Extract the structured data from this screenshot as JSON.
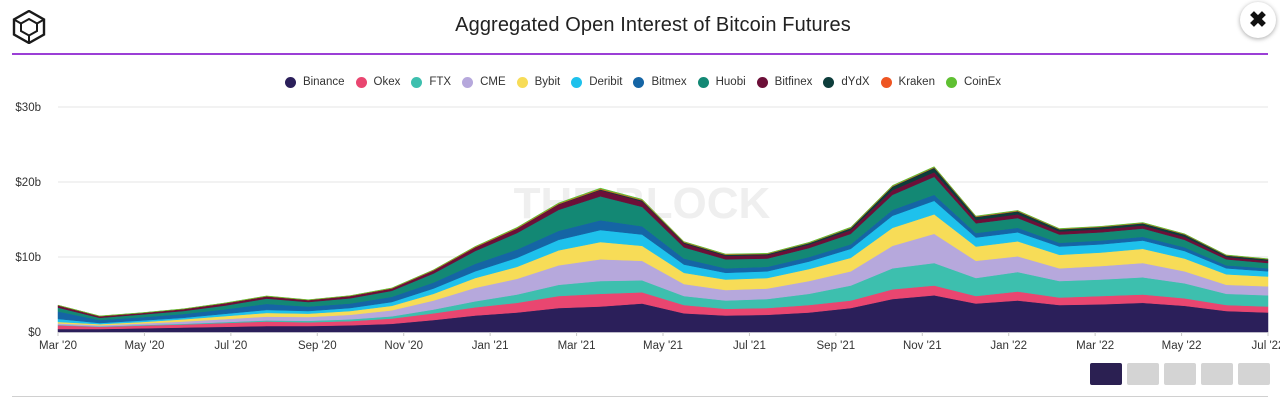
{
  "header": {
    "title": "Aggregated Open Interest of Bitcoin Futures",
    "close_icon": "✖"
  },
  "watermark": "THE BLOCK",
  "colors": {
    "accent_rule": "#9b3fd6",
    "range_active": "#2b2052",
    "range_inactive": "#d4d4d4"
  },
  "range_buttons": [
    {
      "state": "active"
    },
    {
      "state": "inactive"
    },
    {
      "state": "inactive"
    },
    {
      "state": "inactive"
    },
    {
      "state": "inactive"
    }
  ],
  "chart_data": {
    "type": "area",
    "stacked": true,
    "title": "Aggregated Open Interest of Bitcoin Futures",
    "xlabel": "",
    "ylabel": "",
    "grid": true,
    "legend_position": "top",
    "ylim": [
      0,
      30
    ],
    "y_ticks": [
      {
        "value": 0,
        "label": "$0"
      },
      {
        "value": 10,
        "label": "$10b"
      },
      {
        "value": 20,
        "label": "$20b"
      },
      {
        "value": 30,
        "label": "$30b"
      }
    ],
    "x_ticks": [
      "Mar '20",
      "May '20",
      "Jul '20",
      "Sep '20",
      "Nov '20",
      "Jan '21",
      "Mar '21",
      "May '21",
      "Jul '21",
      "Sep '21",
      "Nov '21",
      "Jan '22",
      "Mar '22",
      "May '22",
      "Jul '22"
    ],
    "x": [
      "Mar '20",
      "Apr '20",
      "May '20",
      "Jun '20",
      "Jul '20",
      "Aug '20",
      "Sep '20",
      "Oct '20",
      "Nov '20",
      "Dec '20",
      "Jan '21",
      "Feb '21",
      "Mar '21",
      "Apr '21",
      "Mid Apr '21",
      "May '21",
      "Jun '21",
      "Jul '21",
      "Aug '21",
      "Sep '21",
      "Oct '21",
      "Nov '21",
      "Dec '21",
      "Jan '22",
      "Feb '22",
      "Mar '22",
      "Apr '22",
      "May '22",
      "Jun '22",
      "Jul '22"
    ],
    "series": [
      {
        "name": "Binance",
        "color": "#2b1f5a",
        "values": [
          0.4,
          0.4,
          0.5,
          0.6,
          0.7,
          0.8,
          0.8,
          0.9,
          1.1,
          1.6,
          2.2,
          2.6,
          3.2,
          3.4,
          3.8,
          2.5,
          2.2,
          2.3,
          2.6,
          3.2,
          4.4,
          4.9,
          3.8,
          4.2,
          3.6,
          3.7,
          3.9,
          3.5,
          2.8,
          2.6
        ]
      },
      {
        "name": "Okex",
        "color": "#e94670",
        "values": [
          0.5,
          0.3,
          0.35,
          0.4,
          0.5,
          0.6,
          0.5,
          0.55,
          0.7,
          0.9,
          1.1,
          1.3,
          1.6,
          1.7,
          1.5,
          1.1,
          0.9,
          0.9,
          1.0,
          1.0,
          1.3,
          1.3,
          1.0,
          1.2,
          1.0,
          1.1,
          1.1,
          1.0,
          0.8,
          0.8
        ]
      },
      {
        "name": "FTX",
        "color": "#3dbfae",
        "values": [
          0.05,
          0.05,
          0.08,
          0.1,
          0.12,
          0.15,
          0.2,
          0.25,
          0.3,
          0.5,
          0.8,
          1.1,
          1.5,
          1.7,
          1.6,
          1.2,
          1.1,
          1.2,
          1.5,
          2.0,
          2.8,
          3.0,
          2.4,
          2.6,
          2.2,
          2.2,
          2.3,
          2.0,
          1.5,
          1.5
        ]
      },
      {
        "name": "CME",
        "color": "#b6a8dc",
        "values": [
          0.2,
          0.15,
          0.2,
          0.3,
          0.4,
          0.5,
          0.5,
          0.6,
          0.8,
          1.2,
          1.8,
          2.1,
          2.6,
          2.9,
          2.6,
          1.6,
          1.4,
          1.4,
          1.7,
          1.9,
          3.0,
          3.9,
          2.3,
          2.1,
          1.7,
          1.8,
          1.9,
          1.6,
          1.2,
          1.2
        ]
      },
      {
        "name": "Bybit",
        "color": "#f7dc57",
        "values": [
          0.2,
          0.15,
          0.2,
          0.3,
          0.4,
          0.5,
          0.45,
          0.5,
          0.6,
          0.9,
          1.3,
          1.6,
          2.0,
          2.3,
          2.0,
          1.5,
          1.4,
          1.4,
          1.6,
          1.8,
          2.4,
          2.6,
          1.9,
          2.0,
          1.8,
          1.8,
          1.9,
          1.7,
          1.4,
          1.3
        ]
      },
      {
        "name": "Deribit",
        "color": "#1ec1ec",
        "values": [
          0.4,
          0.15,
          0.2,
          0.2,
          0.3,
          0.4,
          0.35,
          0.4,
          0.5,
          0.7,
          0.9,
          1.2,
          1.4,
          1.6,
          1.5,
          1.1,
          0.9,
          0.9,
          1.0,
          1.2,
          1.6,
          1.8,
          1.2,
          1.2,
          1.1,
          1.1,
          1.1,
          1.0,
          0.8,
          0.7
        ]
      },
      {
        "name": "Bitmex",
        "color": "#1565a5",
        "values": [
          1.0,
          0.4,
          0.45,
          0.5,
          0.6,
          0.8,
          0.6,
          0.6,
          0.7,
          0.8,
          1.0,
          1.1,
          1.2,
          1.3,
          1.1,
          0.8,
          0.6,
          0.6,
          0.6,
          0.6,
          0.8,
          0.8,
          0.6,
          0.6,
          0.5,
          0.5,
          0.5,
          0.5,
          0.4,
          0.4
        ]
      },
      {
        "name": "Huobi",
        "color": "#138874",
        "values": [
          0.5,
          0.3,
          0.35,
          0.4,
          0.5,
          0.7,
          0.6,
          0.7,
          0.8,
          1.2,
          1.7,
          2.2,
          2.8,
          3.2,
          2.6,
          1.5,
          1.2,
          1.1,
          1.2,
          1.4,
          2.0,
          2.4,
          1.3,
          1.3,
          1.1,
          1.1,
          1.1,
          1.0,
          0.8,
          0.7
        ]
      },
      {
        "name": "Bitfinex",
        "color": "#6c0f38",
        "values": [
          0.3,
          0.2,
          0.2,
          0.25,
          0.3,
          0.3,
          0.25,
          0.3,
          0.3,
          0.4,
          0.5,
          0.6,
          0.7,
          0.8,
          0.7,
          0.5,
          0.45,
          0.45,
          0.45,
          0.5,
          0.6,
          0.6,
          0.45,
          0.5,
          0.4,
          0.4,
          0.4,
          0.4,
          0.3,
          0.3
        ]
      },
      {
        "name": "dYdX",
        "color": "#0d3d3b",
        "values": [
          0,
          0,
          0,
          0,
          0,
          0,
          0,
          0,
          0,
          0,
          0,
          0,
          0.05,
          0.1,
          0.15,
          0.15,
          0.15,
          0.15,
          0.2,
          0.25,
          0.5,
          0.6,
          0.4,
          0.4,
          0.3,
          0.3,
          0.3,
          0.3,
          0.2,
          0.2
        ]
      },
      {
        "name": "Kraken",
        "color": "#ee5522",
        "values": [
          0.02,
          0.02,
          0.02,
          0.02,
          0.03,
          0.03,
          0.03,
          0.03,
          0.04,
          0.05,
          0.06,
          0.07,
          0.08,
          0.09,
          0.08,
          0.06,
          0.05,
          0.05,
          0.05,
          0.06,
          0.07,
          0.07,
          0.06,
          0.06,
          0.05,
          0.05,
          0.05,
          0.05,
          0.04,
          0.04
        ]
      },
      {
        "name": "CoinEx",
        "color": "#5fc032",
        "values": [
          0.02,
          0.02,
          0.02,
          0.03,
          0.03,
          0.03,
          0.03,
          0.03,
          0.04,
          0.05,
          0.06,
          0.07,
          0.08,
          0.09,
          0.08,
          0.06,
          0.05,
          0.05,
          0.06,
          0.07,
          0.08,
          0.08,
          0.06,
          0.06,
          0.05,
          0.05,
          0.05,
          0.05,
          0.04,
          0.04
        ]
      }
    ]
  }
}
